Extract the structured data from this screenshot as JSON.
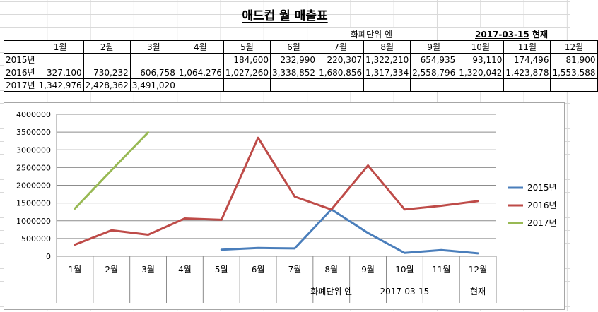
{
  "title": "애드컵 월 매출표",
  "unit_label": "화폐단위 엔",
  "date_label": "2017-03-15",
  "date_suffix": "현재",
  "table": {
    "months": [
      "1월",
      "2월",
      "3월",
      "4월",
      "5월",
      "6월",
      "7월",
      "8월",
      "9월",
      "10월",
      "11월",
      "12월"
    ],
    "rows": [
      {
        "label": "2015년",
        "cells": [
          "",
          "",
          "",
          "",
          "184,600",
          "232,990",
          "220,307",
          "1,322,210",
          "654,935",
          "93,110",
          "174,496",
          "81,900"
        ]
      },
      {
        "label": "2016년",
        "cells": [
          "327,100",
          "730,232",
          "606,758",
          "1,064,276",
          "1,027,260",
          "3,338,852",
          "1,680,856",
          "1,317,334",
          "2,558,796",
          "1,320,042",
          "1,423,878",
          "1,553,588"
        ]
      },
      {
        "label": "2017년",
        "cells": [
          "1,342,976",
          "2,428,362",
          "3,491,020",
          "",
          "",
          "",
          "",
          "",
          "",
          "",
          "",
          ""
        ]
      }
    ]
  },
  "chart_data": {
    "type": "line",
    "categories": [
      "1월",
      "2월",
      "3월",
      "4월",
      "5월",
      "6월",
      "7월",
      "8월",
      "9월",
      "10월",
      "11월",
      "12월"
    ],
    "category_extra_labels": [
      "",
      "",
      "",
      "",
      "",
      "",
      "",
      "화폐단위 엔",
      "",
      "2017-03-15",
      "",
      "현재"
    ],
    "series": [
      {
        "name": "2015년",
        "color": "#4a7ebb",
        "values": [
          null,
          null,
          null,
          null,
          184600,
          232990,
          220307,
          1322210,
          654935,
          93110,
          174496,
          81900
        ]
      },
      {
        "name": "2016년",
        "color": "#be4b48",
        "values": [
          327100,
          730232,
          606758,
          1064276,
          1027260,
          3338852,
          1680856,
          1317334,
          2558796,
          1320042,
          1423878,
          1553588
        ]
      },
      {
        "name": "2017년",
        "color": "#98b954",
        "values": [
          1342976,
          2428362,
          3491020,
          null,
          null,
          null,
          null,
          null,
          null,
          null,
          null,
          null
        ]
      }
    ],
    "ylim": [
      0,
      4000000
    ],
    "yticks": [
      0,
      500000,
      1000000,
      1500000,
      2000000,
      2500000,
      3000000,
      3500000,
      4000000
    ],
    "legend_position": "right",
    "grid": true
  }
}
